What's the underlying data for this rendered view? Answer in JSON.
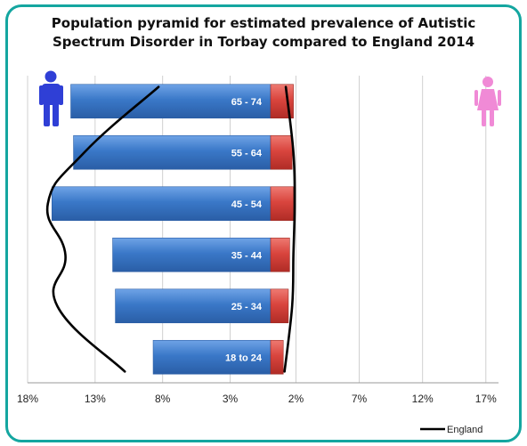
{
  "chart_data": {
    "type": "bar",
    "title": "Population pyramid for estimated prevalence of Autistic Spectrum Disorder in Torbay compared to England 2014",
    "title_lines": [
      "Population pyramid for estimated prevalence of Autistic",
      "Spectrum Disorder in Torbay compared to England 2014"
    ],
    "categories": [
      "65 - 74",
      "55 - 64",
      "45 - 54",
      "35 - 44",
      "25 - 34",
      "18 to 24"
    ],
    "series": [
      {
        "side": "left",
        "color": "#3a78c8",
        "values": [
          14.8,
          14.6,
          16.2,
          11.7,
          11.5,
          8.7
        ]
      },
      {
        "side": "right",
        "color": "#d9453e",
        "values": [
          1.8,
          1.7,
          1.8,
          1.5,
          1.4,
          1.0
        ]
      },
      {
        "name": "England",
        "type": "line",
        "color": "#000000",
        "left_values": [
          8.3,
          13.8,
          16.5,
          15.2,
          15.8,
          10.8
        ],
        "right_values": [
          1.2,
          1.8,
          1.9,
          1.8,
          1.7,
          1.1
        ]
      }
    ],
    "xlim": [
      -18,
      18
    ],
    "x_ticks": [
      -18,
      -13,
      -8,
      -3,
      2,
      7,
      12,
      17
    ],
    "x_tick_labels": [
      "18%",
      "13%",
      "8%",
      "3%",
      "2%",
      "7%",
      "12%",
      "17%"
    ],
    "grid": "vertical",
    "legend": "bottom-right",
    "icons": {
      "male": "male-figure-icon",
      "female": "female-figure-icon"
    },
    "colors": {
      "male": "#2f3fd6",
      "female": "#f08ad6",
      "frame": "#14a6a0"
    }
  }
}
